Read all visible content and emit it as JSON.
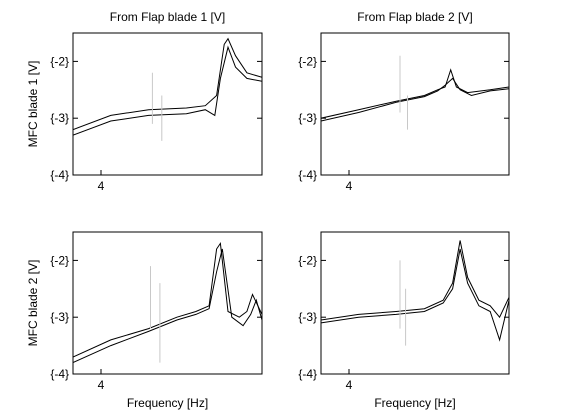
{
  "chart_data": [
    {
      "type": "line",
      "title": "From Flap blade 1 [V]",
      "ylabel": "MFC blade 1 [V]",
      "xlabel": "",
      "x_scale": "log",
      "x_ticks": [
        "4"
      ],
      "y_ticks": [
        "{-4}",
        "{-3}",
        "{-2}"
      ],
      "ylim": [
        -4,
        -1.5
      ],
      "series": [
        {
          "color": "#000000",
          "x": [
            0,
            0.2,
            0.4,
            0.6,
            0.7,
            0.76,
            0.8,
            0.82,
            0.86,
            0.92,
            1.0
          ],
          "y": [
            -3.2,
            -2.95,
            -2.85,
            -2.82,
            -2.78,
            -2.6,
            -1.7,
            -1.6,
            -1.9,
            -2.2,
            -2.28
          ]
        },
        {
          "color": "#000000",
          "x": [
            0,
            0.2,
            0.4,
            0.6,
            0.7,
            0.75,
            0.78,
            0.82,
            0.86,
            0.92,
            1.0
          ],
          "y": [
            -3.3,
            -3.05,
            -2.95,
            -2.92,
            -2.85,
            -2.95,
            -2.3,
            -1.75,
            -2.1,
            -2.3,
            -2.35
          ]
        },
        {
          "color": "#c8c8c8",
          "x": [
            0.42,
            0.42,
            0.47,
            0.47
          ],
          "y": [
            -2.2,
            -3.1,
            -2.6,
            -3.4
          ]
        }
      ]
    },
    {
      "type": "line",
      "title": "From Flap blade 2 [V]",
      "ylabel": "",
      "xlabel": "",
      "x_scale": "log",
      "x_ticks": [
        "4"
      ],
      "y_ticks": [
        "{-4}",
        "{-3}",
        "{-2}"
      ],
      "ylim": [
        -4,
        -1.5
      ],
      "series": [
        {
          "color": "#000000",
          "x": [
            0,
            0.2,
            0.4,
            0.55,
            0.62,
            0.66,
            0.69,
            0.72,
            0.78,
            0.9,
            1.0
          ],
          "y": [
            -3.0,
            -2.85,
            -2.7,
            -2.6,
            -2.5,
            -2.45,
            -2.15,
            -2.45,
            -2.55,
            -2.5,
            -2.45
          ]
        },
        {
          "color": "#000000",
          "x": [
            0,
            0.2,
            0.4,
            0.55,
            0.62,
            0.66,
            0.7,
            0.74,
            0.8,
            0.9,
            1.0
          ],
          "y": [
            -3.05,
            -2.9,
            -2.72,
            -2.62,
            -2.52,
            -2.42,
            -2.3,
            -2.5,
            -2.6,
            -2.52,
            -2.48
          ]
        },
        {
          "color": "#c8c8c8",
          "x": [
            0.42,
            0.42,
            0.46,
            0.46
          ],
          "y": [
            -1.9,
            -2.9,
            -2.6,
            -3.2
          ]
        }
      ]
    },
    {
      "type": "line",
      "title": "",
      "ylabel": "MFC blade 2 [V]",
      "xlabel": "Frequency [Hz]",
      "x_scale": "log",
      "x_ticks": [
        "4"
      ],
      "y_ticks": [
        "{-4}",
        "{-3}",
        "{-2}"
      ],
      "ylim": [
        -4,
        -1.5
      ],
      "series": [
        {
          "color": "#000000",
          "x": [
            0,
            0.2,
            0.4,
            0.55,
            0.65,
            0.72,
            0.76,
            0.78,
            0.82,
            0.88,
            0.92,
            0.95,
            1.0
          ],
          "y": [
            -3.7,
            -3.4,
            -3.2,
            -3.0,
            -2.9,
            -2.8,
            -1.8,
            -1.7,
            -2.9,
            -3.0,
            -2.9,
            -2.6,
            -2.95
          ]
        },
        {
          "color": "#000000",
          "x": [
            0,
            0.2,
            0.4,
            0.55,
            0.65,
            0.72,
            0.76,
            0.79,
            0.84,
            0.9,
            0.94,
            0.97,
            1.0
          ],
          "y": [
            -3.8,
            -3.5,
            -3.25,
            -3.05,
            -2.95,
            -2.85,
            -2.2,
            -1.8,
            -3.0,
            -3.15,
            -2.95,
            -2.7,
            -3.05
          ]
        },
        {
          "color": "#c8c8c8",
          "x": [
            0.41,
            0.41,
            0.46,
            0.46
          ],
          "y": [
            -2.1,
            -3.2,
            -2.4,
            -3.8
          ]
        }
      ]
    },
    {
      "type": "line",
      "title": "",
      "ylabel": "",
      "xlabel": "Frequency [Hz]",
      "x_scale": "log",
      "x_ticks": [
        "4"
      ],
      "y_ticks": [
        "{-4}",
        "{-3}",
        "{-2}"
      ],
      "ylim": [
        -4,
        -1.5
      ],
      "series": [
        {
          "color": "#000000",
          "x": [
            0,
            0.2,
            0.4,
            0.55,
            0.65,
            0.7,
            0.74,
            0.78,
            0.84,
            0.9,
            0.95,
            1.0
          ],
          "y": [
            -3.05,
            -2.95,
            -2.9,
            -2.85,
            -2.7,
            -2.4,
            -1.65,
            -2.3,
            -2.7,
            -2.8,
            -3.0,
            -2.65
          ]
        },
        {
          "color": "#000000",
          "x": [
            0,
            0.2,
            0.4,
            0.55,
            0.65,
            0.7,
            0.74,
            0.78,
            0.84,
            0.9,
            0.95,
            1.0
          ],
          "y": [
            -3.1,
            -3.0,
            -2.95,
            -2.9,
            -2.75,
            -2.5,
            -1.8,
            -2.4,
            -2.8,
            -2.9,
            -3.4,
            -2.7
          ]
        },
        {
          "color": "#c8c8c8",
          "x": [
            0.42,
            0.42,
            0.45,
            0.45
          ],
          "y": [
            -2.0,
            -3.2,
            -2.5,
            -3.5
          ]
        }
      ]
    }
  ]
}
